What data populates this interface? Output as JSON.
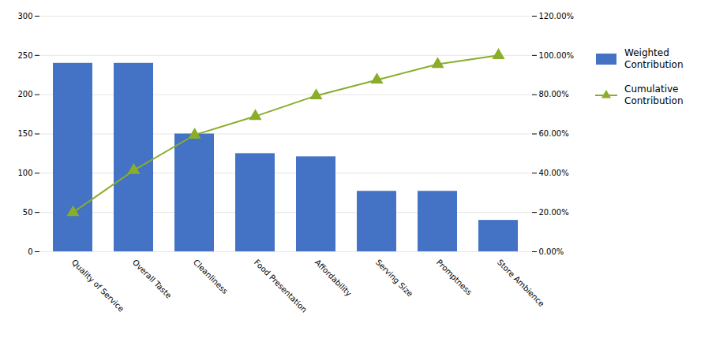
{
  "chart_data": {
    "type": "bar",
    "categories": [
      "Quality of Service",
      "Overall Taste",
      "Cleanliness",
      "Food Presentation",
      "Affordability",
      "Serving Size",
      "Promptness",
      "Store Ambience"
    ],
    "series": [
      {
        "name": "Weighted\nContribution",
        "type": "bar",
        "color": "#4472C4",
        "values": [
          240,
          240,
          150,
          125,
          121,
          77,
          77,
          40
        ]
      },
      {
        "name": "Cumulative\nContribution",
        "type": "line",
        "axis": "y2",
        "color": "#8AAD2A",
        "marker": "triangle",
        "values": [
          0.2,
          0.415,
          0.595,
          0.69,
          0.795,
          0.875,
          0.955,
          1.0
        ]
      }
    ],
    "ylim": [
      0,
      300
    ],
    "yticks": [
      0,
      50,
      100,
      150,
      200,
      250,
      300
    ],
    "y2lim": [
      0,
      1.2
    ],
    "y2ticks": [
      {
        "value": 0.0,
        "label": "0.00%"
      },
      {
        "value": 0.2,
        "label": "20.00%"
      },
      {
        "value": 0.4,
        "label": "40.00%"
      },
      {
        "value": 0.6,
        "label": "60.00%"
      },
      {
        "value": 0.8,
        "label": "80.00%"
      },
      {
        "value": 1.0,
        "label": "100.00%"
      },
      {
        "value": 1.2,
        "label": "120.00%"
      }
    ],
    "grid": true,
    "legend": "right"
  }
}
